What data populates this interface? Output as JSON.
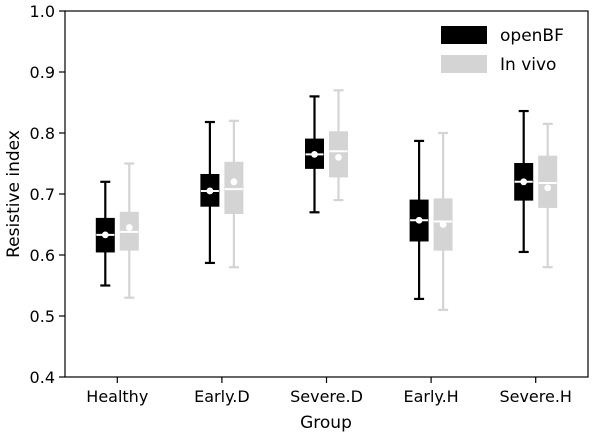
{
  "chart_data": {
    "type": "box",
    "xlabel": "Group",
    "ylabel": "Resistive index",
    "ylim": [
      0.4,
      1.0
    ],
    "yticks": [
      "0.4",
      "0.5",
      "0.6",
      "0.7",
      "0.8",
      "0.9",
      "1.0"
    ],
    "categories": [
      "Healthy",
      "Early.D",
      "Severe.D",
      "Early.H",
      "Severe.H"
    ],
    "legend_position": "top-right",
    "grid": false,
    "series": [
      {
        "name": "openBF",
        "color": "#000000",
        "median_color": "#ffffff",
        "mean_color": "#ffffff",
        "boxes": [
          {
            "whislo": 0.55,
            "q1": 0.605,
            "med": 0.633,
            "mean": 0.633,
            "q3": 0.66,
            "whishi": 0.72
          },
          {
            "whislo": 0.587,
            "q1": 0.68,
            "med": 0.705,
            "mean": 0.705,
            "q3": 0.732,
            "whishi": 0.818
          },
          {
            "whislo": 0.67,
            "q1": 0.742,
            "med": 0.765,
            "mean": 0.765,
            "q3": 0.79,
            "whishi": 0.86
          },
          {
            "whislo": 0.528,
            "q1": 0.623,
            "med": 0.657,
            "mean": 0.657,
            "q3": 0.69,
            "whishi": 0.787
          },
          {
            "whislo": 0.605,
            "q1": 0.69,
            "med": 0.72,
            "mean": 0.72,
            "q3": 0.75,
            "whishi": 0.836
          }
        ]
      },
      {
        "name": "In vivo",
        "color": "#d4d4d4",
        "median_color": "#ffffff",
        "mean_color": "#ffffff",
        "boxes": [
          {
            "whislo": 0.53,
            "q1": 0.608,
            "med": 0.638,
            "mean": 0.645,
            "q3": 0.67,
            "whishi": 0.75
          },
          {
            "whislo": 0.58,
            "q1": 0.668,
            "med": 0.708,
            "mean": 0.72,
            "q3": 0.752,
            "whishi": 0.82
          },
          {
            "whislo": 0.69,
            "q1": 0.728,
            "med": 0.77,
            "mean": 0.76,
            "q3": 0.802,
            "whishi": 0.87
          },
          {
            "whislo": 0.51,
            "q1": 0.608,
            "med": 0.655,
            "mean": 0.65,
            "q3": 0.692,
            "whishi": 0.8
          },
          {
            "whislo": 0.58,
            "q1": 0.678,
            "med": 0.718,
            "mean": 0.71,
            "q3": 0.762,
            "whishi": 0.815
          }
        ]
      }
    ]
  }
}
